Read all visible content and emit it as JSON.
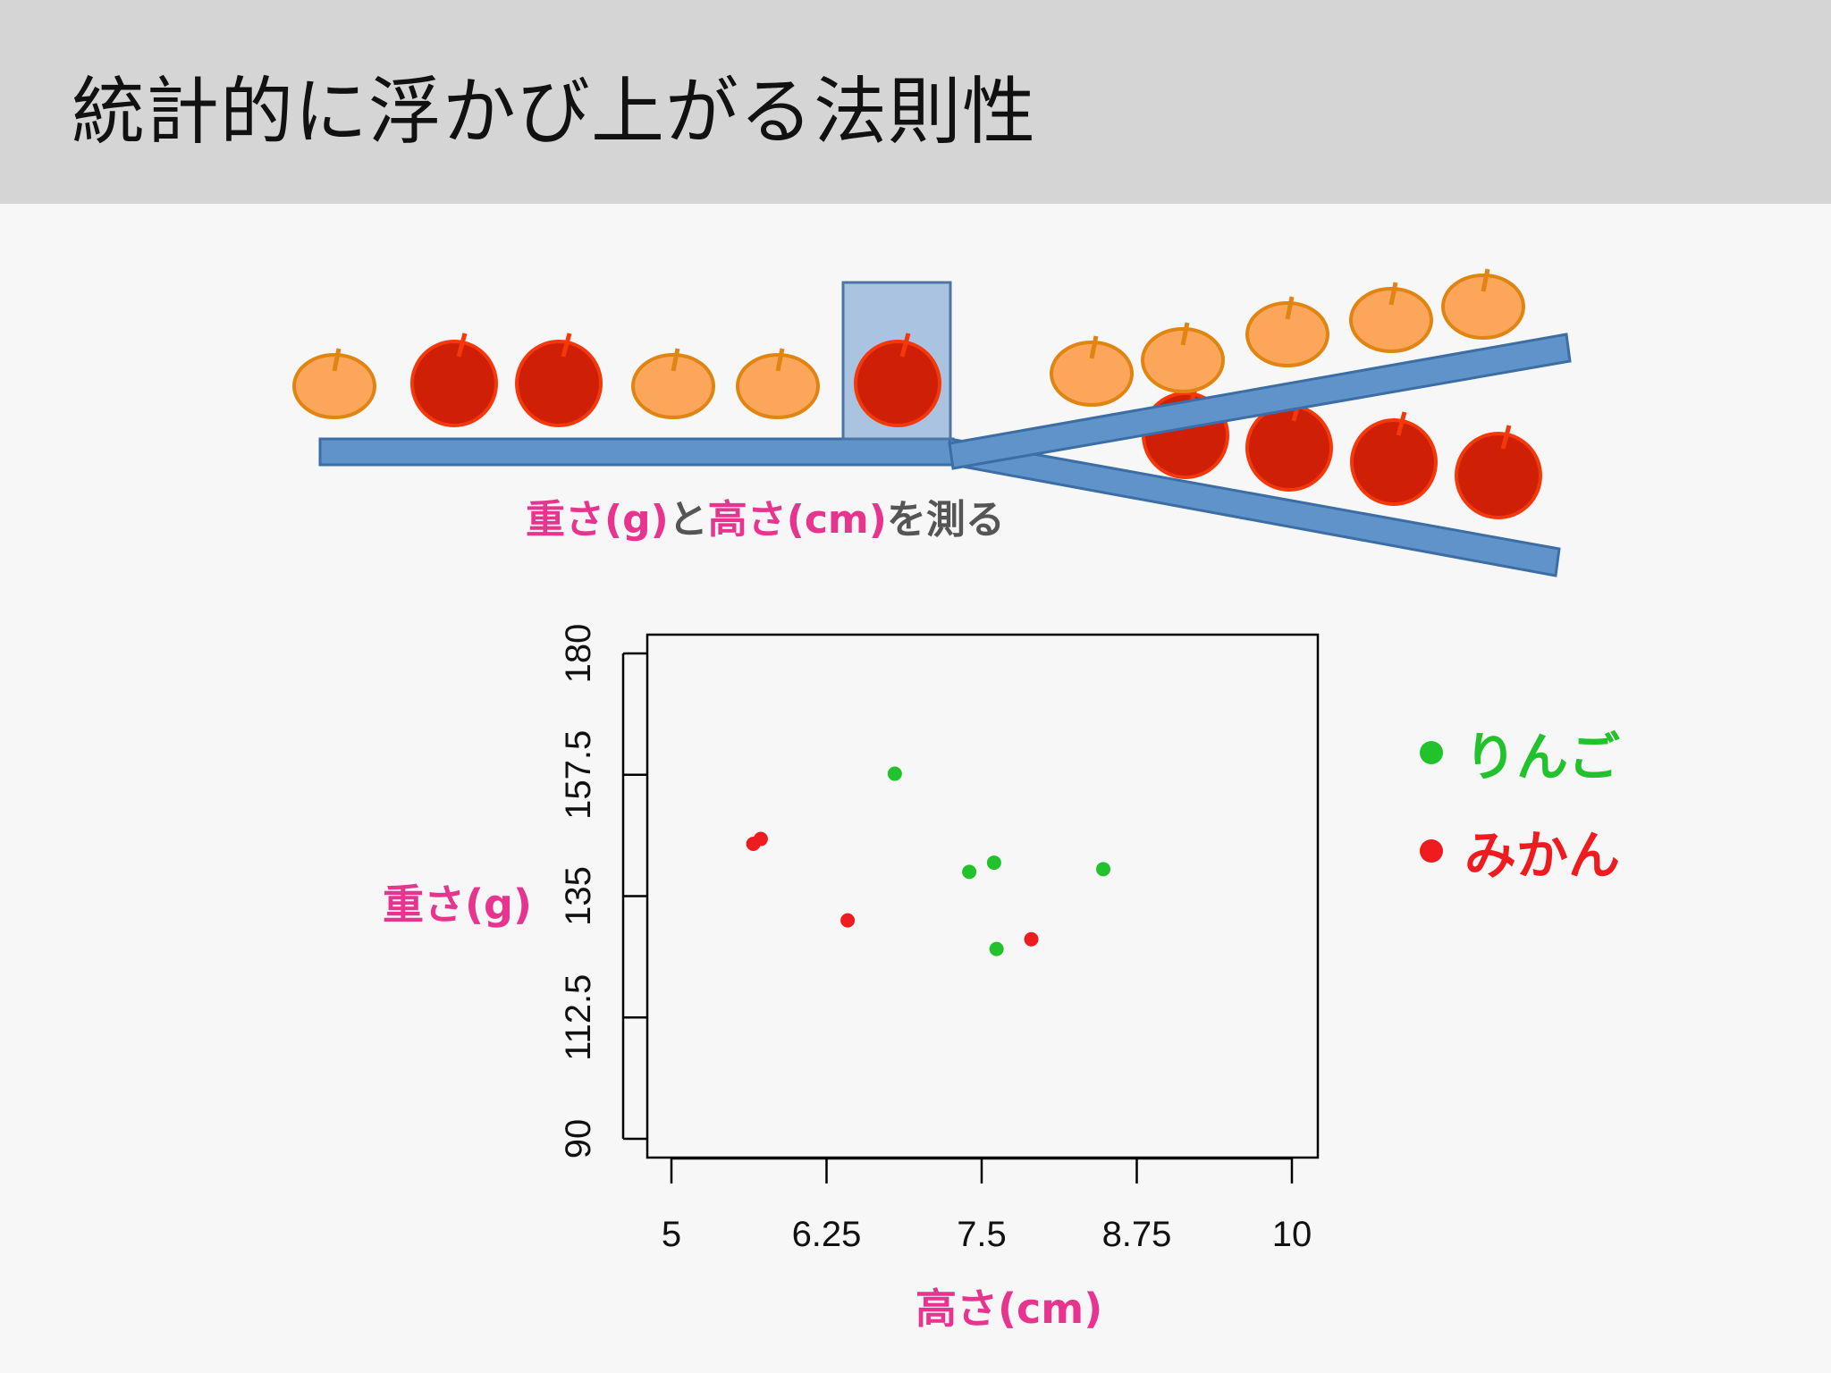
{
  "slide": {
    "title": "統計的に浮かび上がる法則性",
    "caption_parts": [
      {
        "text": "重さ(g)",
        "color": "#e6348f"
      },
      {
        "text": "と",
        "color": "#555555"
      },
      {
        "text": "高さ(cm)",
        "color": "#e6348f"
      },
      {
        "text": "を測る",
        "color": "#555555"
      }
    ]
  },
  "colors": {
    "orange_fill": "#fba65a",
    "orange_stroke": "#e08412",
    "red_fill": "#cf1f06",
    "red_stroke": "#f4380a",
    "belt": "#5f93c9",
    "belt_stroke": "#3c6ea6",
    "scanner": "#a9c3e0",
    "apple_series": "#22c22c",
    "mikan_series": "#ee1b1f"
  },
  "illustration": {
    "conveyor_sequence": [
      "mikan",
      "apple",
      "apple",
      "mikan",
      "mikan",
      "apple"
    ],
    "upper_branch": [
      "mikan",
      "mikan",
      "mikan",
      "mikan",
      "mikan"
    ],
    "lower_branch": [
      "apple",
      "apple",
      "apple",
      "apple"
    ]
  },
  "chart_data": {
    "type": "scatter",
    "xlabel": "高さ(cm)",
    "ylabel": "重さ(g)",
    "xlim": [
      5,
      10
    ],
    "ylim": [
      90,
      180
    ],
    "xticks": [
      "5",
      "6.25",
      "7.5",
      "8.75",
      "10"
    ],
    "yticks": [
      "90",
      "112.5",
      "135",
      "157.5",
      "180"
    ],
    "series": [
      {
        "name": "りんご",
        "color": "#22c22c",
        "points": [
          {
            "x": 6.8,
            "y": 157.7
          },
          {
            "x": 7.4,
            "y": 139.5
          },
          {
            "x": 7.6,
            "y": 141.2
          },
          {
            "x": 8.48,
            "y": 140.0
          },
          {
            "x": 7.62,
            "y": 125.2
          }
        ]
      },
      {
        "name": "みかん",
        "color": "#ee1b1f",
        "points": [
          {
            "x": 5.66,
            "y": 144.7
          },
          {
            "x": 5.72,
            "y": 145.6
          },
          {
            "x": 6.42,
            "y": 130.5
          },
          {
            "x": 7.9,
            "y": 127.0
          }
        ]
      }
    ],
    "legend_position": "right"
  }
}
